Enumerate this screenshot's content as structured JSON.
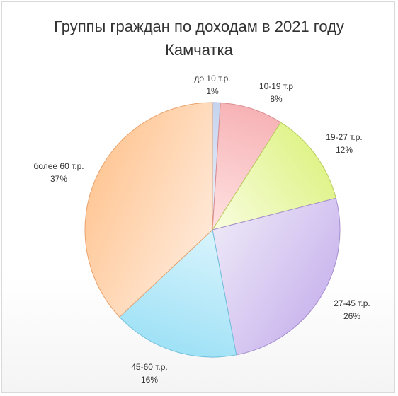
{
  "chart_data": {
    "type": "pie",
    "title": "Группы граждан по доходам в 2021 году\nКамчатка",
    "categories": [
      "до 10 т.р.",
      "10-19 т.р",
      "19-27 т.р.",
      "27-45 т.р.",
      "45-60 т.р.",
      "более 60 т.р."
    ],
    "values": [
      1,
      8,
      12,
      26,
      16,
      37
    ],
    "value_labels": [
      "1%",
      "8%",
      "12%",
      "26%",
      "16%",
      "37%"
    ],
    "start_angle_deg": 0,
    "direction": "clockwise",
    "legend": "none",
    "colors": {
      "до 10 т.р.": {
        "light": "#eef3fb",
        "dark": "#c5d3ee",
        "stroke": "#8aa5d6"
      },
      "10-19 т.р": {
        "light": "#ffe2e2",
        "dark": "#f7b3b6",
        "stroke": "#d98c90"
      },
      "19-27 т.р.": {
        "light": "#f9fde0",
        "dark": "#dff38a",
        "stroke": "#b8cc5c"
      },
      "27-45 т.р.": {
        "light": "#ece7f7",
        "dark": "#ccb8ee",
        "stroke": "#a58fcf"
      },
      "45-60 т.р.": {
        "light": "#d9f4fd",
        "dark": "#9fe1f6",
        "stroke": "#6fbfdc"
      },
      "более 60 т.р.": {
        "light": "#ffe8d6",
        "dark": "#ffc898",
        "stroke": "#e9a26c"
      }
    }
  }
}
